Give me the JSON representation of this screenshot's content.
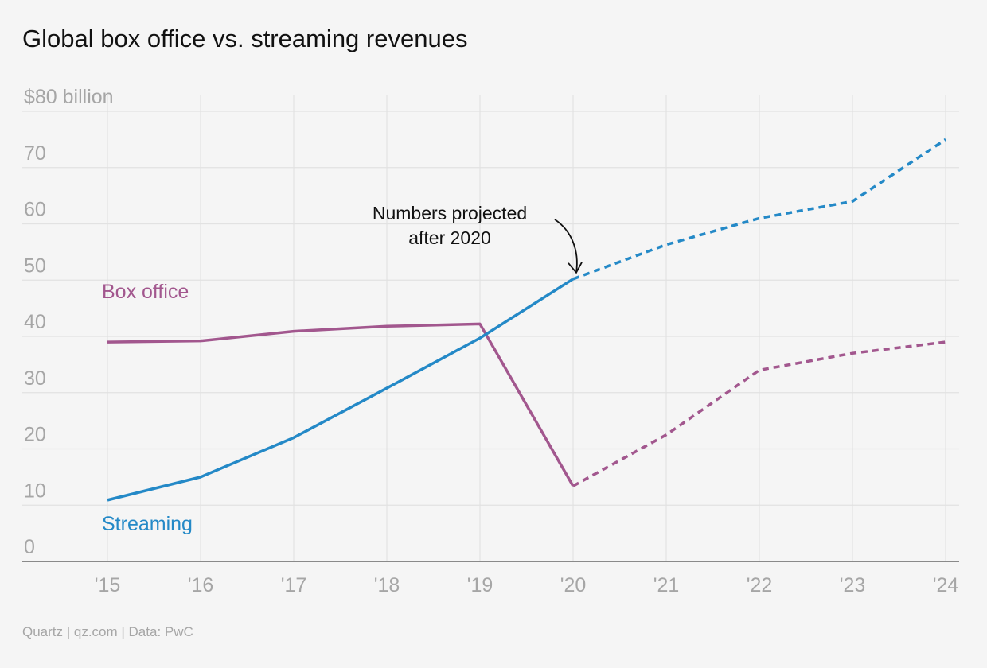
{
  "chart_data": {
    "type": "line",
    "title": "Global box office vs. streaming revenues",
    "x": [
      "'15",
      "'16",
      "'17",
      "'18",
      "'19",
      "'20",
      "'21",
      "'22",
      "'23",
      "'24"
    ],
    "ylim": [
      0,
      80
    ],
    "yticks": [
      0,
      10,
      20,
      30,
      40,
      50,
      60,
      70,
      80
    ],
    "ytick_labels": [
      "0",
      "10",
      "20",
      "30",
      "40",
      "50",
      "60",
      "70",
      "$80 billion"
    ],
    "grid": true,
    "projection_start": "'20",
    "series": [
      {
        "name": "Box office",
        "color": "#a2578e",
        "values": [
          39,
          39.2,
          40.9,
          41.8,
          42.2,
          13.4,
          22.5,
          34,
          37,
          39
        ]
      },
      {
        "name": "Streaming",
        "color": "#2489c7",
        "values": [
          10.9,
          15,
          22,
          30.8,
          39.7,
          50.2,
          56.3,
          61,
          64,
          75
        ]
      }
    ],
    "annotation": {
      "lines": [
        "Numbers projected",
        "after 2020"
      ]
    },
    "source": "Quartz | qz.com | Data: PwC"
  }
}
